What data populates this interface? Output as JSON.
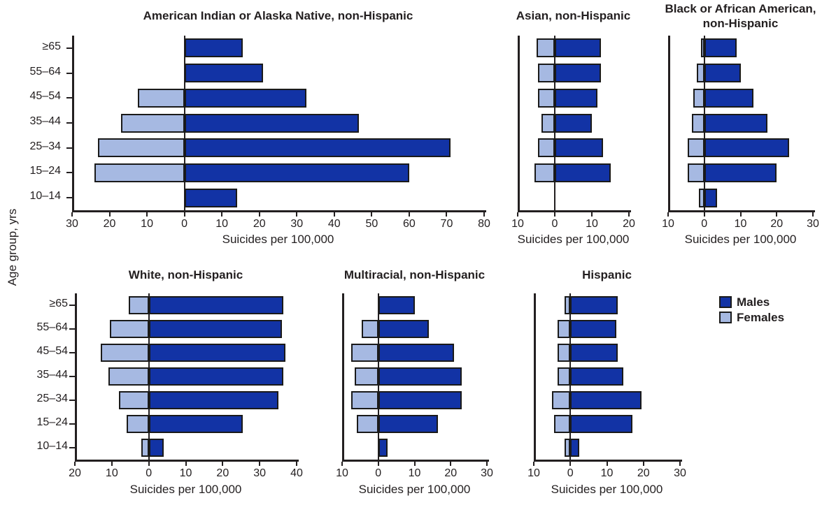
{
  "figure": {
    "y_axis_label": "Age group, yrs",
    "legend": [
      {
        "label": "Males",
        "color": "#1233a5"
      },
      {
        "label": "Females",
        "color": "#a6b9e2"
      }
    ]
  },
  "colors": {
    "male_bar": "#1233a5",
    "female_bar": "#a6b9e2",
    "axis": "#231f20",
    "background": "#ffffff"
  },
  "chart_data": {
    "type": "bar",
    "orientation": "horizontal-diverging",
    "note": "Population-pyramid style panels; Males extend right of 0, Females extend left of 0",
    "categories": [
      "≥65",
      "55–64",
      "45–54",
      "35–44",
      "25–34",
      "15–24",
      "10–14"
    ],
    "panels": [
      {
        "title": "American Indian or Alaska Native, non-Hispanic",
        "xlabel": "Suicides per 100,000",
        "female_axis_max": 30,
        "male_axis_max": 80,
        "tick_step": 10,
        "ticks": [
          "30",
          "20",
          "10",
          "0",
          "10",
          "20",
          "30",
          "40",
          "50",
          "60",
          "70",
          "80"
        ],
        "series": [
          {
            "name": "Males",
            "values": [
              15.5,
              21,
              32.5,
              46.5,
              71,
              60,
              14
            ]
          },
          {
            "name": "Females",
            "values": [
              0,
              0,
              12.5,
              17,
              23,
              24,
              0
            ]
          }
        ]
      },
      {
        "title": "Asian, non-Hispanic",
        "xlabel": "Suicides per 100,000",
        "female_axis_max": 10,
        "male_axis_max": 20,
        "tick_step": 10,
        "ticks": [
          "10",
          "0",
          "10",
          "20"
        ],
        "series": [
          {
            "name": "Males",
            "values": [
              12.5,
              12.5,
              11.5,
              10,
              13,
              15,
              0
            ]
          },
          {
            "name": "Females",
            "values": [
              5,
              4.5,
              4.5,
              3.5,
              4.5,
              5.5,
              0
            ]
          }
        ]
      },
      {
        "title": "Black or African American,\nnon-Hispanic",
        "xlabel": "Suicides per 100,000",
        "female_axis_max": 10,
        "male_axis_max": 30,
        "tick_step": 10,
        "ticks": [
          "10",
          "0",
          "10",
          "20",
          "30"
        ],
        "series": [
          {
            "name": "Males",
            "values": [
              9,
              10,
              13.5,
              17.5,
              23.5,
              20,
              3.5
            ]
          },
          {
            "name": "Females",
            "values": [
              1,
              2,
              3,
              3.5,
              4.5,
              4.5,
              1.5
            ]
          }
        ]
      },
      {
        "title": "White, non-Hispanic",
        "xlabel": "Suicides per 100,000",
        "female_axis_max": 20,
        "male_axis_max": 40,
        "tick_step": 10,
        "ticks": [
          "20",
          "10",
          "0",
          "10",
          "20",
          "30",
          "40"
        ],
        "series": [
          {
            "name": "Males",
            "values": [
              36.5,
              36,
              37,
              36.5,
              35,
              25.5,
              4
            ]
          },
          {
            "name": "Females",
            "values": [
              5.5,
              10.5,
              13,
              11,
              8,
              6,
              2
            ]
          }
        ]
      },
      {
        "title": "Multiracial, non-Hispanic",
        "xlabel": "Suicides per 100,000",
        "female_axis_max": 10,
        "male_axis_max": 30,
        "tick_step": 10,
        "ticks": [
          "10",
          "0",
          "10",
          "20",
          "30"
        ],
        "series": [
          {
            "name": "Males",
            "values": [
              10,
              14,
              21,
              23,
              23,
              16.5,
              2.5
            ]
          },
          {
            "name": "Females",
            "values": [
              0,
              4.5,
              7.5,
              6.5,
              7.5,
              6,
              0
            ]
          }
        ]
      },
      {
        "title": "Hispanic",
        "xlabel": "Suicides per 100,000",
        "female_axis_max": 10,
        "male_axis_max": 30,
        "tick_step": 10,
        "ticks": [
          "10",
          "0",
          "10",
          "20",
          "30"
        ],
        "series": [
          {
            "name": "Males",
            "values": [
              13,
              12.5,
              13,
              14.5,
              19.5,
              17,
              2.5
            ]
          },
          {
            "name": "Females",
            "values": [
              1.5,
              3.5,
              3.5,
              3.5,
              5,
              4.5,
              1.5
            ]
          }
        ]
      }
    ]
  }
}
